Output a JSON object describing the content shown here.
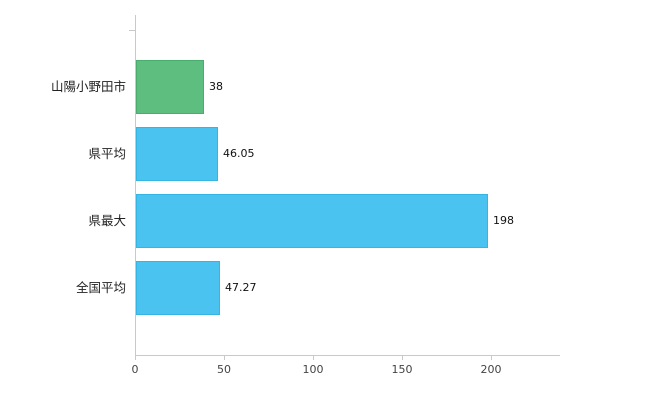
{
  "chart_data": {
    "type": "bar",
    "orientation": "horizontal",
    "categories": [
      "山陽小野田市",
      "県平均",
      "県最大",
      "全国平均"
    ],
    "values": [
      38,
      46.05,
      198,
      47.27
    ],
    "value_labels": [
      "38",
      "46.05",
      "198",
      "47.27"
    ],
    "bar_colors": [
      "#5dbe80",
      "#4ac3f0",
      "#4ac3f0",
      "#4ac3f0"
    ],
    "bar_border_colors": [
      "#49ad6e",
      "#35b5e4",
      "#35b5e4",
      "#35b5e4"
    ],
    "x_ticks": [
      0,
      50,
      100,
      150,
      200
    ],
    "xlim": [
      0,
      238
    ],
    "grid": false,
    "legend": false,
    "title": ""
  },
  "colors": {
    "axis": "#c9c9c9",
    "background": "#ffffff",
    "category_text": "#222222",
    "tick_text": "#444444",
    "value_text": "#111111"
  }
}
